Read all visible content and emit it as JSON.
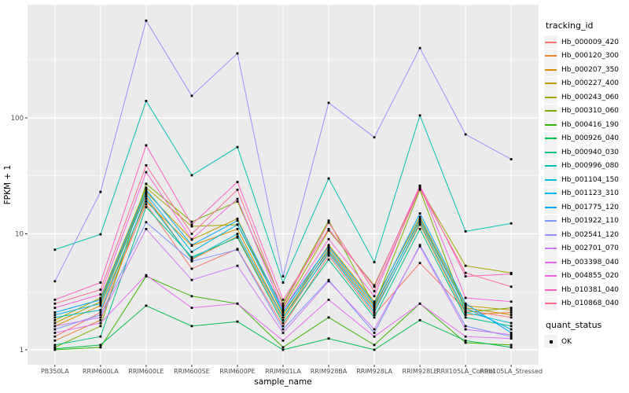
{
  "figure": {
    "background": "#FFFFFF",
    "panel_background": "#EBEBEB",
    "grid_color": "#FFFFFF",
    "axis_text_color": "#4D4D4D",
    "axis_title_color": "#000000",
    "tick_mark_color": "#333333",
    "point_color": "#000000",
    "legend_key_background": "#F2F2F2"
  },
  "legend": {
    "tracking_title": "tracking_id",
    "quant_title": "quant_status",
    "quant_items": [
      {
        "label": "OK",
        "marker": "black-square"
      }
    ]
  },
  "chart_data": {
    "type": "line",
    "title": "",
    "xlabel": "sample_name",
    "ylabel": "FPKM + 1",
    "y_scale": "log10",
    "y_ticks": [
      1,
      10,
      100
    ],
    "y_minor_ticks_log10": [
      0.5,
      1.5,
      2.5
    ],
    "ylim": [
      0.78,
      900
    ],
    "grid": "major-and-minor-horizontal, major-vertical, white on gray panel",
    "legend_position": "right",
    "point_marker": "small black square (quant_status OK)",
    "categories": [
      "PB350LA",
      "RRIM600LA",
      "RRIM600LE",
      "RRIM600SE",
      "RRIM600PE",
      "RRIM901LA",
      "RRIM928BA",
      "RRIM928LA",
      "RRIM928LE",
      "RRII105LA_Control",
      "RRII105LA_Stressed"
    ],
    "series": [
      {
        "name": "Hb_000009_420",
        "color": "#F8766D",
        "values": [
          1.3,
          2.1,
          18,
          5.0,
          7.4,
          1.6,
          6.5,
          2.0,
          5.6,
          2.2,
          1.9
        ]
      },
      {
        "name": "Hb_000120_300",
        "color": "#EA8331",
        "values": [
          1.2,
          1.8,
          21,
          6.0,
          9.5,
          1.8,
          7.0,
          2.2,
          12,
          2.0,
          2.1
        ]
      },
      {
        "name": "Hb_000207_350",
        "color": "#D89000",
        "values": [
          1.6,
          2.4,
          19,
          7.9,
          11,
          1.9,
          7.5,
          2.4,
          13,
          2.3,
          2.0
        ]
      },
      {
        "name": "Hb_000227_400",
        "color": "#C09B00",
        "values": [
          1.7,
          2.6,
          23,
          8.9,
          13.5,
          2.0,
          8.0,
          2.6,
          14,
          2.4,
          2.2
        ]
      },
      {
        "name": "Hb_000243_060",
        "color": "#A3A500",
        "values": [
          1.8,
          2.8,
          25,
          11.6,
          12,
          2.3,
          10.7,
          3.6,
          25,
          5.3,
          4.6
        ]
      },
      {
        "name": "Hb_000310_060",
        "color": "#7CAE00",
        "values": [
          1.05,
          1.6,
          27,
          12.7,
          19,
          2.5,
          13,
          2.4,
          24,
          2.1,
          2.3
        ]
      },
      {
        "name": "Hb_000416_190",
        "color": "#39B600",
        "values": [
          1.0,
          1.05,
          4.3,
          2.9,
          2.5,
          1.05,
          1.9,
          1.1,
          2.5,
          1.15,
          1.1
        ]
      },
      {
        "name": "Hb_000926_040",
        "color": "#00BB4E",
        "values": [
          1.02,
          1.1,
          2.4,
          1.6,
          1.75,
          1.0,
          1.25,
          1.0,
          1.8,
          1.2,
          1.05
        ]
      },
      {
        "name": "Hb_000940_030",
        "color": "#00C087",
        "values": [
          1.1,
          1.3,
          17,
          6.3,
          9.3,
          1.7,
          6.0,
          1.9,
          11,
          1.9,
          1.6
        ]
      },
      {
        "name": "Hb_000996_080",
        "color": "#00C0B2",
        "values": [
          7.3,
          9.9,
          140,
          32,
          56,
          3.8,
          30,
          5.7,
          105,
          10.5,
          12.3
        ]
      },
      {
        "name": "Hb_001104_150",
        "color": "#00BCD6",
        "values": [
          1.9,
          2.2,
          20,
          6.1,
          10,
          1.9,
          6.8,
          2.1,
          12.5,
          2.1,
          1.7
        ]
      },
      {
        "name": "Hb_001123_310",
        "color": "#00B4EF",
        "values": [
          2.0,
          2.5,
          22,
          7.0,
          12,
          2.1,
          7.2,
          2.3,
          13.5,
          2.3,
          1.5
        ]
      },
      {
        "name": "Hb_001775_120",
        "color": "#00A6FF",
        "values": [
          2.1,
          2.7,
          24,
          8.0,
          13,
          2.2,
          7.8,
          2.5,
          15,
          2.5,
          1.4
        ]
      },
      {
        "name": "Hb_001922_110",
        "color": "#7E96FF",
        "values": [
          1.5,
          2.0,
          12.6,
          5.8,
          7.3,
          1.5,
          4.0,
          1.4,
          8.0,
          1.6,
          1.3
        ]
      },
      {
        "name": "Hb_002541_120",
        "color": "#9691FF",
        "values": [
          3.9,
          23,
          690,
          155,
          360,
          4.3,
          135,
          68,
          400,
          72,
          44
        ]
      },
      {
        "name": "Hb_002701_070",
        "color": "#CF78F8",
        "values": [
          1.6,
          1.9,
          11,
          4.0,
          5.3,
          1.4,
          3.9,
          1.5,
          7.8,
          1.5,
          1.35
        ]
      },
      {
        "name": "Hb_003398_040",
        "color": "#E76BF3",
        "values": [
          1.4,
          1.7,
          4.4,
          2.3,
          2.5,
          1.2,
          2.7,
          1.3,
          2.5,
          1.3,
          1.25
        ]
      },
      {
        "name": "Hb_004855_020",
        "color": "#F863DF",
        "values": [
          2.3,
          3.0,
          34,
          9.0,
          20,
          2.2,
          9.0,
          2.9,
          26,
          2.8,
          2.6
        ]
      },
      {
        "name": "Hb_010381_040",
        "color": "#FF61C3",
        "values": [
          2.7,
          3.8,
          58,
          12,
          28,
          2.7,
          11,
          3.5,
          26,
          4.3,
          4.5
        ]
      },
      {
        "name": "Hb_010868_040",
        "color": "#FF6C91",
        "values": [
          2.5,
          3.3,
          39,
          10,
          24,
          2.4,
          12.5,
          3.2,
          24.5,
          4.6,
          3.5
        ]
      }
    ],
    "quant_status_all_points": "OK"
  }
}
